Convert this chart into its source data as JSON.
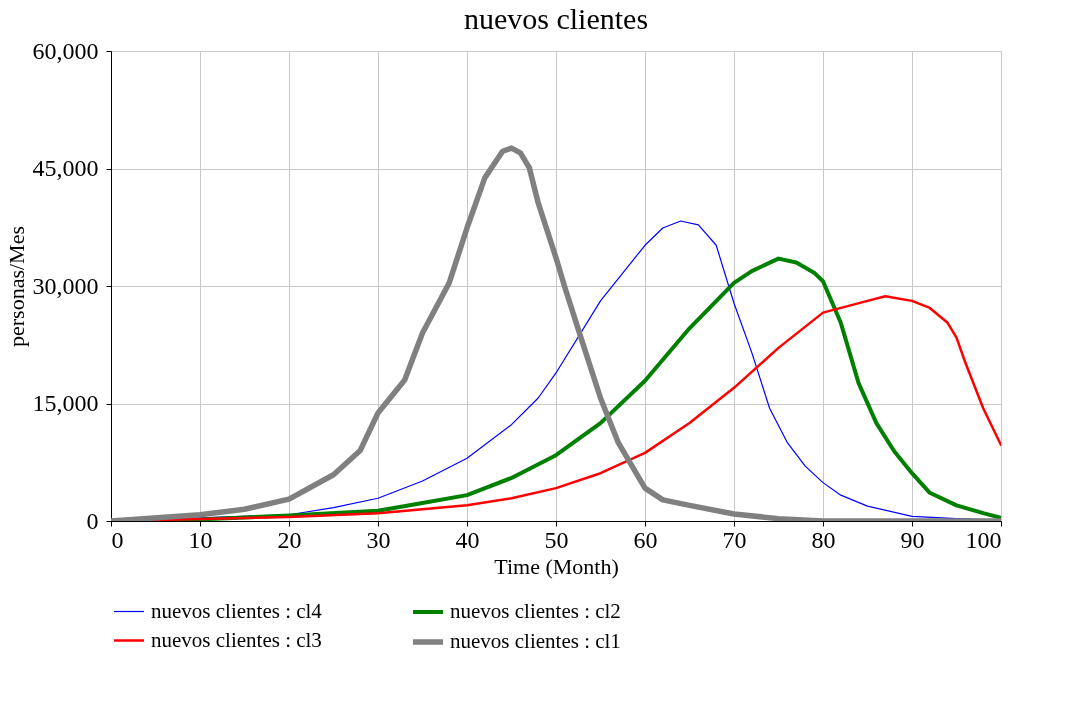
{
  "chart_data": {
    "type": "line",
    "title": "nuevos clientes",
    "xlabel": "Time (Month)",
    "ylabel": "personas/Mes",
    "xlim": [
      0,
      100
    ],
    "xticks": [
      0,
      10,
      20,
      30,
      40,
      50,
      60,
      70,
      80,
      90,
      100
    ],
    "ylim": [
      0,
      60000
    ],
    "yticks": [
      {
        "value": 0,
        "label": "0"
      },
      {
        "value": 15000,
        "label": "15,000"
      },
      {
        "value": 30000,
        "label": "30,000"
      },
      {
        "value": 45000,
        "label": "45,000"
      },
      {
        "value": 60000,
        "label": "60,000"
      }
    ],
    "grid": true,
    "legend": "bottom",
    "series": [
      {
        "name": "nuevos clientes : cl4",
        "color": "#0000ff",
        "x": [
          0,
          20,
          25,
          30,
          35,
          40,
          45,
          48,
          50,
          55,
          60,
          62,
          64,
          66,
          68,
          70,
          72,
          74,
          76,
          78,
          80,
          82,
          85,
          90,
          95,
          100
        ],
        "values": [
          0,
          800,
          1700,
          2900,
          5100,
          8000,
          12300,
          15700,
          18900,
          28100,
          35200,
          37400,
          38300,
          37800,
          35200,
          27800,
          21500,
          14400,
          10000,
          7000,
          4900,
          3300,
          1900,
          600,
          300,
          100
        ]
      },
      {
        "name": "nuevos clientes : cl2",
        "color": "#008000",
        "x": [
          0,
          10,
          20,
          30,
          35,
          40,
          45,
          50,
          55,
          60,
          65,
          70,
          72,
          75,
          77,
          79,
          80,
          82,
          84,
          86,
          88,
          90,
          92,
          95,
          98,
          100
        ],
        "values": [
          0,
          200,
          700,
          1300,
          2300,
          3300,
          5500,
          8400,
          12500,
          17900,
          24600,
          30400,
          31900,
          33500,
          33000,
          31700,
          30600,
          25300,
          17600,
          12500,
          8900,
          6100,
          3600,
          2000,
          1000,
          400
        ]
      },
      {
        "name": "nuevos clientes : cl3",
        "color": "#ff0000",
        "x": [
          0,
          20,
          30,
          40,
          45,
          50,
          55,
          60,
          65,
          70,
          75,
          80,
          85,
          87,
          90,
          92,
          94,
          95,
          96,
          98,
          100
        ],
        "values": [
          0,
          500,
          1000,
          2000,
          2900,
          4200,
          6100,
          8700,
          12500,
          17000,
          22100,
          26600,
          28100,
          28700,
          28100,
          27200,
          25300,
          23400,
          20200,
          14400,
          9700
        ]
      },
      {
        "name": "nuevos clientes : cl1",
        "color": "#808080",
        "x": [
          0,
          10,
          15,
          20,
          25,
          28,
          30,
          33,
          35,
          38,
          40,
          42,
          44,
          45,
          46,
          47,
          48,
          50,
          51,
          53,
          55,
          57,
          60,
          62,
          65,
          70,
          75,
          80,
          100
        ],
        "values": [
          0,
          800,
          1500,
          2800,
          5900,
          9000,
          13800,
          18000,
          24000,
          30400,
          37400,
          43800,
          47200,
          47600,
          47000,
          45100,
          40600,
          33600,
          29800,
          22700,
          15700,
          10000,
          4200,
          2700,
          2000,
          900,
          300,
          0,
          0
        ]
      }
    ]
  }
}
